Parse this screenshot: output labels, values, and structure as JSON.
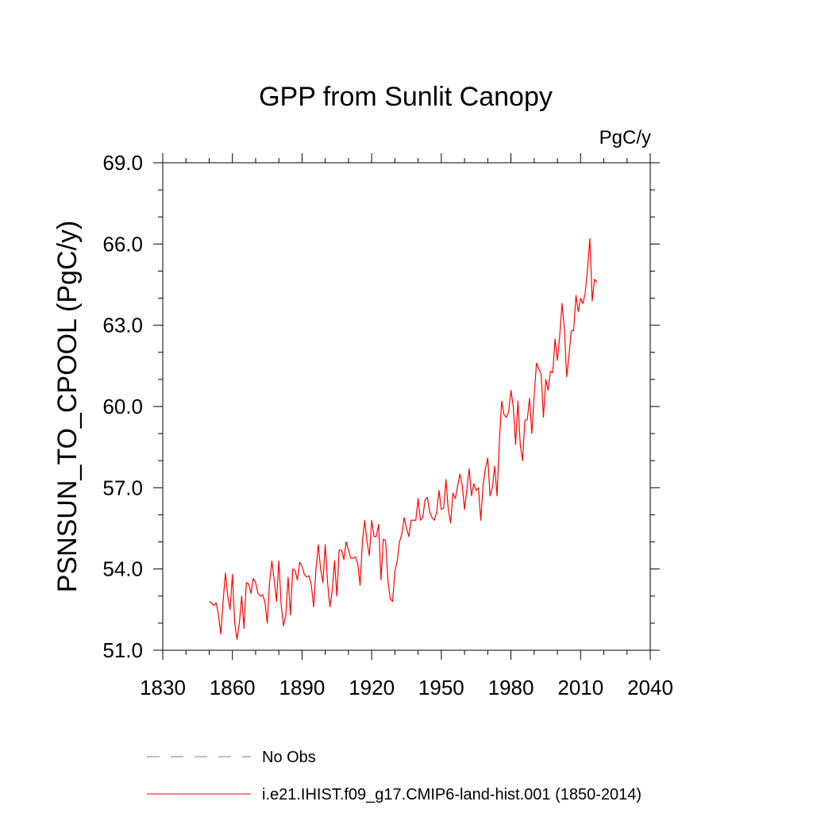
{
  "chart_data": {
    "type": "line",
    "title": "GPP from Sunlit Canopy",
    "units": "PgC/y",
    "ylabel": "PSNSUN_TO_CPOOL  (PgC/y)",
    "xlabel": "",
    "xlim": [
      1830,
      2040
    ],
    "ylim": [
      51.0,
      69.0
    ],
    "x_ticks": [
      1830,
      1860,
      1890,
      1920,
      1950,
      1980,
      2010,
      2040
    ],
    "x_tick_labels": [
      "1830",
      "1860",
      "1890",
      "1920",
      "1950",
      "1980",
      "2010",
      "2040"
    ],
    "y_ticks": [
      51,
      54,
      57,
      60,
      63,
      66,
      69
    ],
    "y_tick_labels": [
      "51.0",
      "54.0",
      "57.0",
      "60.0",
      "63.0",
      "66.0",
      "69.0"
    ],
    "grid": false,
    "legend_position": "bottom",
    "legend": [
      {
        "label": "No Obs",
        "color": "#7b6fd0",
        "dash": "dashed"
      },
      {
        "label": "i.e21.IHIST.f09_g17.CMIP6-land-hist.001 (1850-2014)",
        "color": "#ff0000",
        "dash": "solid"
      }
    ],
    "series": [
      {
        "name": "i.e21.IHIST.f09_g17.CMIP6-land-hist.001 (1850-2014)",
        "color": "#ff0000",
        "x_start": 1850,
        "x_step": 1,
        "values": [
          52.8,
          52.75,
          52.65,
          52.75,
          52.3,
          51.6,
          52.8,
          53.85,
          53.0,
          52.5,
          53.8,
          52.0,
          51.4,
          52.0,
          53.0,
          51.8,
          53.5,
          53.45,
          53.1,
          53.65,
          53.5,
          53.1,
          53.0,
          53.05,
          52.8,
          52.0,
          53.5,
          54.3,
          53.6,
          52.8,
          54.3,
          52.7,
          51.9,
          52.3,
          53.7,
          52.3,
          54.0,
          53.95,
          53.6,
          54.25,
          54.1,
          53.8,
          53.7,
          53.75,
          53.4,
          52.6,
          54.0,
          54.9,
          54.0,
          53.5,
          54.9,
          53.5,
          52.6,
          53.2,
          54.3,
          53.0,
          54.7,
          54.7,
          54.35,
          55.0,
          54.7,
          54.4,
          54.4,
          54.45,
          54.2,
          53.4,
          55.0,
          55.8,
          55.0,
          54.5,
          55.8,
          55.2,
          55.2,
          55.65,
          53.6,
          55.1,
          55.05,
          53.6,
          52.9,
          52.8,
          53.9,
          54.3,
          55.0,
          55.3,
          55.9,
          55.5,
          55.2,
          55.8,
          55.8,
          55.8,
          56.6,
          55.8,
          55.9,
          56.55,
          56.65,
          56.1,
          55.9,
          55.8,
          56.1,
          56.9,
          56.2,
          56.25,
          57.3,
          56.2,
          55.7,
          56.8,
          56.6,
          57.05,
          57.5,
          57.1,
          56.2,
          56.95,
          57.7,
          56.7,
          57.15,
          56.9,
          57.0,
          55.8,
          57.1,
          57.7,
          58.1,
          56.7,
          57.0,
          57.8,
          56.7,
          58.7,
          60.2,
          59.7,
          59.6,
          59.8,
          60.6,
          60.0,
          58.6,
          60.2,
          58.6,
          58.0,
          59.5,
          59.5,
          60.3,
          59.0,
          60.4,
          61.6,
          61.4,
          61.2,
          59.6,
          61.0,
          60.6,
          61.3,
          61.25,
          62.5,
          61.7,
          62.6,
          63.8,
          62.9,
          61.1,
          61.9,
          62.8,
          62.8,
          64.1,
          63.5,
          64.0,
          63.8,
          64.2,
          65.1,
          66.2,
          63.9,
          64.7,
          64.6
        ]
      }
    ]
  }
}
